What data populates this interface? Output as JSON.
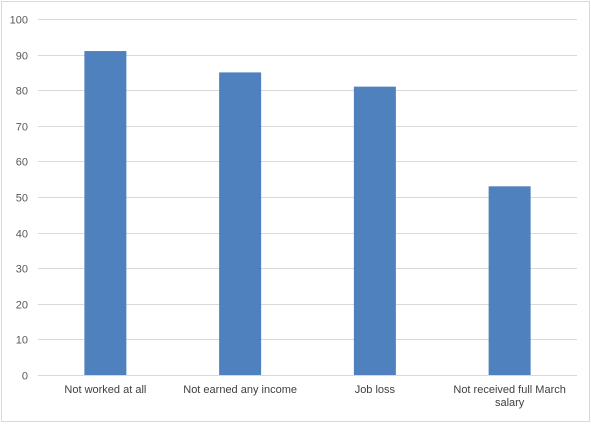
{
  "chart_data": {
    "type": "bar",
    "title": "",
    "xlabel": "",
    "ylabel": "",
    "categories": [
      "Not worked at all",
      "Not earned any income",
      "Job loss",
      "Not received full March salary"
    ],
    "category_lines": [
      [
        "Not worked at all"
      ],
      [
        "Not earned any income"
      ],
      [
        "Job loss"
      ],
      [
        "Not received full March",
        "salary"
      ]
    ],
    "values": [
      91,
      85,
      81,
      53
    ],
    "ylim": [
      0,
      100
    ],
    "yticks": [
      0,
      10,
      20,
      30,
      40,
      50,
      60,
      70,
      80,
      90,
      100
    ],
    "grid": true,
    "legend": "none",
    "bar_color": "#4e81bd",
    "grid_color": "#d9d9d9"
  }
}
